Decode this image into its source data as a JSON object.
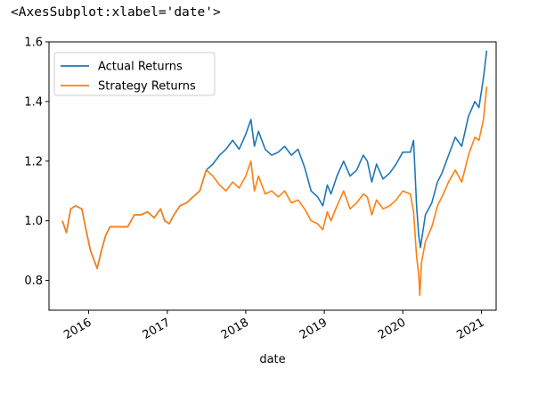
{
  "output_repr": "<AxesSubplot:xlabel='date'>",
  "chart_data": {
    "type": "line",
    "title": "",
    "xlabel": "date",
    "ylabel": "",
    "xlim": [
      "2015-07-01",
      "2021-03-10"
    ],
    "ylim": [
      0.7,
      1.6
    ],
    "x_ticks": [
      "2016",
      "2017",
      "2018",
      "2019",
      "2020",
      "2021"
    ],
    "y_ticks": [
      "0.8",
      "1.0",
      "1.2",
      "1.4",
      "1.6"
    ],
    "grid": false,
    "legend_position": "upper-left",
    "series": [
      {
        "name": "Actual Returns",
        "color": "#1f77b4",
        "points": [
          [
            "2015-09-01",
            1.0
          ],
          [
            "2015-09-20",
            0.96
          ],
          [
            "2015-10-10",
            1.04
          ],
          [
            "2015-11-01",
            1.05
          ],
          [
            "2015-12-01",
            1.04
          ],
          [
            "2015-12-20",
            0.97
          ],
          [
            "2016-01-10",
            0.9
          ],
          [
            "2016-02-10",
            0.84
          ],
          [
            "2016-03-01",
            0.9
          ],
          [
            "2016-03-20",
            0.95
          ],
          [
            "2016-04-10",
            0.98
          ],
          [
            "2016-05-20",
            0.98
          ],
          [
            "2016-07-01",
            0.98
          ],
          [
            "2016-08-01",
            1.02
          ],
          [
            "2016-09-01",
            1.02
          ],
          [
            "2016-10-01",
            1.03
          ],
          [
            "2016-11-01",
            1.01
          ],
          [
            "2016-12-01",
            1.04
          ],
          [
            "2016-12-20",
            1.0
          ],
          [
            "2017-01-10",
            0.99
          ],
          [
            "2017-02-01",
            1.02
          ],
          [
            "2017-03-01",
            1.05
          ],
          [
            "2017-04-01",
            1.06
          ],
          [
            "2017-05-01",
            1.08
          ],
          [
            "2017-06-01",
            1.1
          ],
          [
            "2017-07-01",
            1.17
          ],
          [
            "2017-08-01",
            1.19
          ],
          [
            "2017-09-01",
            1.22
          ],
          [
            "2017-10-01",
            1.24
          ],
          [
            "2017-11-01",
            1.27
          ],
          [
            "2017-12-01",
            1.24
          ],
          [
            "2018-01-01",
            1.29
          ],
          [
            "2018-01-25",
            1.34
          ],
          [
            "2018-02-10",
            1.25
          ],
          [
            "2018-03-01",
            1.3
          ],
          [
            "2018-04-01",
            1.24
          ],
          [
            "2018-05-01",
            1.22
          ],
          [
            "2018-06-01",
            1.23
          ],
          [
            "2018-07-01",
            1.25
          ],
          [
            "2018-08-01",
            1.22
          ],
          [
            "2018-09-01",
            1.24
          ],
          [
            "2018-10-01",
            1.18
          ],
          [
            "2018-11-01",
            1.1
          ],
          [
            "2018-12-01",
            1.08
          ],
          [
            "2018-12-25",
            1.05
          ],
          [
            "2019-01-15",
            1.12
          ],
          [
            "2019-02-01",
            1.09
          ],
          [
            "2019-03-01",
            1.15
          ],
          [
            "2019-04-01",
            1.2
          ],
          [
            "2019-05-01",
            1.15
          ],
          [
            "2019-06-01",
            1.17
          ],
          [
            "2019-07-01",
            1.22
          ],
          [
            "2019-07-20",
            1.2
          ],
          [
            "2019-08-10",
            1.13
          ],
          [
            "2019-09-01",
            1.19
          ],
          [
            "2019-10-01",
            1.14
          ],
          [
            "2019-11-01",
            1.16
          ],
          [
            "2019-12-01",
            1.19
          ],
          [
            "2020-01-01",
            1.23
          ],
          [
            "2020-02-05",
            1.23
          ],
          [
            "2020-02-20",
            1.27
          ],
          [
            "2020-03-05",
            1.05
          ],
          [
            "2020-03-15",
            0.95
          ],
          [
            "2020-03-23",
            0.91
          ],
          [
            "2020-04-15",
            1.02
          ],
          [
            "2020-05-15",
            1.06
          ],
          [
            "2020-06-10",
            1.13
          ],
          [
            "2020-07-01",
            1.16
          ],
          [
            "2020-08-01",
            1.22
          ],
          [
            "2020-09-01",
            1.28
          ],
          [
            "2020-10-01",
            1.25
          ],
          [
            "2020-11-01",
            1.35
          ],
          [
            "2020-12-01",
            1.4
          ],
          [
            "2020-12-20",
            1.38
          ],
          [
            "2021-01-10",
            1.48
          ],
          [
            "2021-01-25",
            1.57
          ]
        ]
      },
      {
        "name": "Strategy Returns",
        "color": "#ff7f0e",
        "points": [
          [
            "2015-09-01",
            1.0
          ],
          [
            "2015-09-20",
            0.96
          ],
          [
            "2015-10-10",
            1.04
          ],
          [
            "2015-11-01",
            1.05
          ],
          [
            "2015-12-01",
            1.04
          ],
          [
            "2015-12-20",
            0.97
          ],
          [
            "2016-01-10",
            0.9
          ],
          [
            "2016-02-10",
            0.84
          ],
          [
            "2016-03-01",
            0.9
          ],
          [
            "2016-03-20",
            0.95
          ],
          [
            "2016-04-10",
            0.98
          ],
          [
            "2016-05-20",
            0.98
          ],
          [
            "2016-07-01",
            0.98
          ],
          [
            "2016-08-01",
            1.02
          ],
          [
            "2016-09-01",
            1.02
          ],
          [
            "2016-10-01",
            1.03
          ],
          [
            "2016-11-01",
            1.01
          ],
          [
            "2016-12-01",
            1.04
          ],
          [
            "2016-12-20",
            1.0
          ],
          [
            "2017-01-10",
            0.99
          ],
          [
            "2017-02-01",
            1.02
          ],
          [
            "2017-03-01",
            1.05
          ],
          [
            "2017-04-01",
            1.06
          ],
          [
            "2017-05-01",
            1.08
          ],
          [
            "2017-06-01",
            1.1
          ],
          [
            "2017-07-01",
            1.17
          ],
          [
            "2017-08-01",
            1.15
          ],
          [
            "2017-09-01",
            1.12
          ],
          [
            "2017-10-01",
            1.1
          ],
          [
            "2017-11-01",
            1.13
          ],
          [
            "2017-12-01",
            1.11
          ],
          [
            "2018-01-01",
            1.15
          ],
          [
            "2018-01-25",
            1.2
          ],
          [
            "2018-02-10",
            1.1
          ],
          [
            "2018-03-01",
            1.15
          ],
          [
            "2018-04-01",
            1.09
          ],
          [
            "2018-05-01",
            1.1
          ],
          [
            "2018-06-01",
            1.08
          ],
          [
            "2018-07-01",
            1.1
          ],
          [
            "2018-08-01",
            1.06
          ],
          [
            "2018-09-01",
            1.07
          ],
          [
            "2018-10-01",
            1.04
          ],
          [
            "2018-11-01",
            1.0
          ],
          [
            "2018-12-01",
            0.99
          ],
          [
            "2018-12-25",
            0.97
          ],
          [
            "2019-01-15",
            1.03
          ],
          [
            "2019-02-01",
            1.0
          ],
          [
            "2019-03-01",
            1.05
          ],
          [
            "2019-04-01",
            1.1
          ],
          [
            "2019-05-01",
            1.04
          ],
          [
            "2019-06-01",
            1.06
          ],
          [
            "2019-07-01",
            1.09
          ],
          [
            "2019-07-20",
            1.08
          ],
          [
            "2019-08-10",
            1.02
          ],
          [
            "2019-09-01",
            1.07
          ],
          [
            "2019-10-01",
            1.04
          ],
          [
            "2019-11-01",
            1.05
          ],
          [
            "2019-12-01",
            1.07
          ],
          [
            "2020-01-01",
            1.1
          ],
          [
            "2020-02-05",
            1.09
          ],
          [
            "2020-02-20",
            1.03
          ],
          [
            "2020-03-05",
            0.88
          ],
          [
            "2020-03-15",
            0.82
          ],
          [
            "2020-03-20",
            0.75
          ],
          [
            "2020-03-28",
            0.86
          ],
          [
            "2020-04-15",
            0.93
          ],
          [
            "2020-05-15",
            0.98
          ],
          [
            "2020-06-10",
            1.05
          ],
          [
            "2020-07-01",
            1.08
          ],
          [
            "2020-08-01",
            1.13
          ],
          [
            "2020-09-01",
            1.17
          ],
          [
            "2020-10-01",
            1.13
          ],
          [
            "2020-11-01",
            1.22
          ],
          [
            "2020-12-01",
            1.28
          ],
          [
            "2020-12-20",
            1.27
          ],
          [
            "2021-01-10",
            1.34
          ],
          [
            "2021-01-25",
            1.45
          ]
        ]
      }
    ]
  }
}
